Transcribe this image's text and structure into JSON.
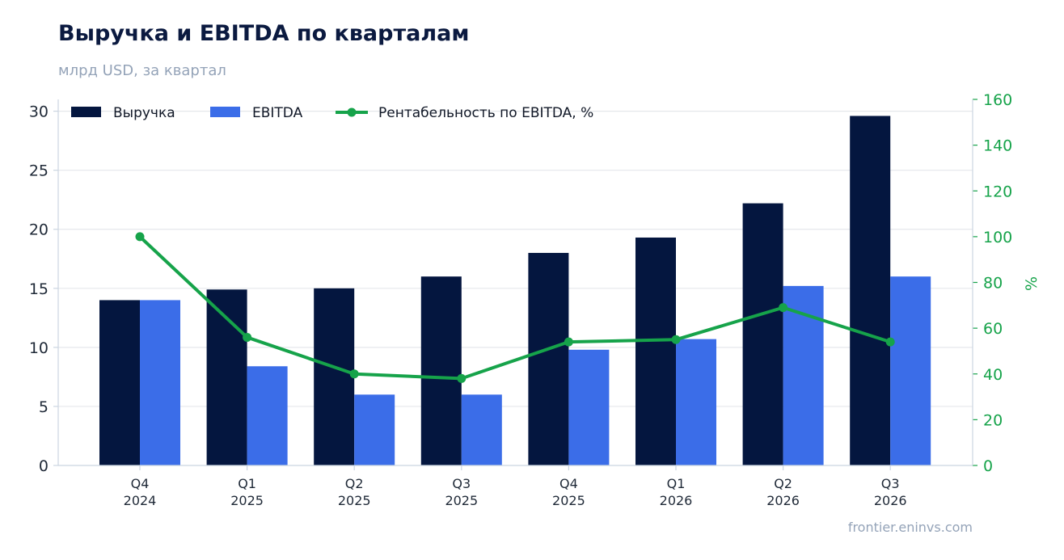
{
  "header": {
    "title": "Выручка и EBITDA по кварталам",
    "subtitle": "млрд USD, за квартал"
  },
  "footer": {
    "source": "frontier.eninvs.com"
  },
  "colors": {
    "revenue": "#04163f",
    "ebitda": "#3b6de8",
    "margin": "#16a34a",
    "grid": "#e5e7eb",
    "axis": "#cbd5e1"
  },
  "chart_data": {
    "type": "bar",
    "categories": [
      [
        "Q4",
        "2024"
      ],
      [
        "Q1",
        "2025"
      ],
      [
        "Q2",
        "2025"
      ],
      [
        "Q3",
        "2025"
      ],
      [
        "Q4",
        "2025"
      ],
      [
        "Q1",
        "2026"
      ],
      [
        "Q2",
        "2026"
      ],
      [
        "Q3",
        "2026"
      ]
    ],
    "series": [
      {
        "name": "Выручка",
        "kind": "bar",
        "axis": "left",
        "values": [
          14.0,
          14.9,
          15.0,
          16.0,
          18.0,
          19.3,
          22.2,
          29.6
        ]
      },
      {
        "name": "EBITDA",
        "kind": "bar",
        "axis": "left",
        "values": [
          14.0,
          8.4,
          6.0,
          6.0,
          9.8,
          10.7,
          15.2,
          16.0
        ]
      },
      {
        "name": "Рентабельность по EBITDA, %",
        "kind": "line",
        "axis": "right",
        "values": [
          100,
          56,
          40,
          38,
          54,
          55,
          69,
          54
        ]
      }
    ],
    "y_left": {
      "min": 0,
      "max": 31,
      "ticks": [
        0,
        5,
        10,
        15,
        20,
        25,
        30
      ]
    },
    "y_right": {
      "min": 0,
      "max": 160,
      "ticks": [
        0,
        20,
        40,
        60,
        80,
        100,
        120,
        140,
        160
      ],
      "label": "%"
    },
    "legend_position": "top-left",
    "grid": "horizontal"
  }
}
